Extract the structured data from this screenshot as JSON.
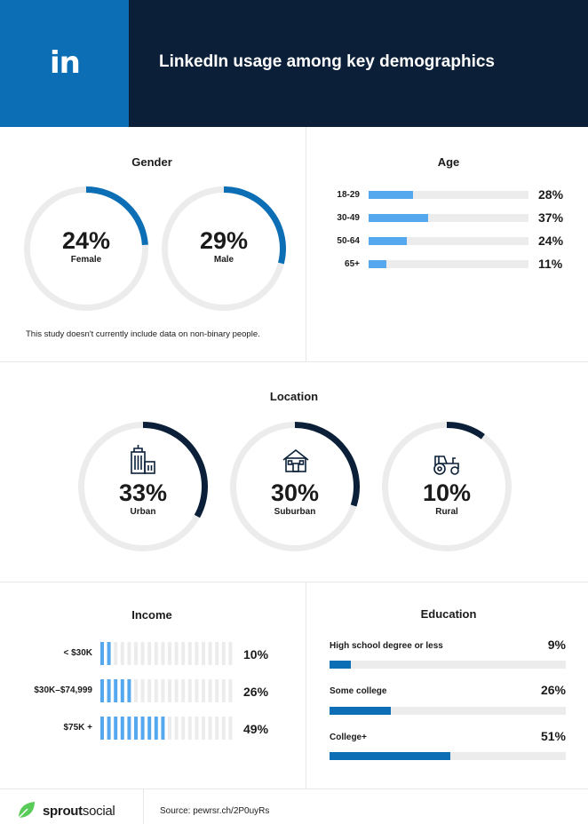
{
  "header": {
    "logo": "in",
    "title": "LinkedIn usage among key demographics"
  },
  "colors": {
    "header_bg": "#0b2038",
    "logo_bg": "#0c6fb5",
    "gender_arc": "#0c6fb5",
    "location_arc": "#0b2038",
    "age_bar": "#55a8ee",
    "income_bar": "#55a8ee",
    "education_bar": "#0c6fb5",
    "track": "#ececec"
  },
  "chart_data": [
    {
      "type": "pie",
      "title": "Gender",
      "categories": [
        "Female",
        "Male"
      ],
      "values": [
        24,
        29
      ],
      "value_labels": [
        "24%",
        "29%"
      ],
      "note": "This study doesn't currently include data on non-binary people."
    },
    {
      "type": "bar",
      "title": "Age",
      "categories": [
        "18-29",
        "30-49",
        "50-64",
        "65+"
      ],
      "values": [
        28,
        37,
        24,
        11
      ],
      "value_labels": [
        "28%",
        "37%",
        "24%",
        "11%"
      ],
      "orientation": "horizontal",
      "xlim": [
        0,
        100
      ]
    },
    {
      "type": "pie",
      "title": "Location",
      "categories": [
        "Urban",
        "Suburban",
        "Rural"
      ],
      "values": [
        33,
        30,
        10
      ],
      "value_labels": [
        "33%",
        "30%",
        "10%"
      ],
      "icons": [
        "city-buildings-icon",
        "house-icon",
        "tractor-icon"
      ]
    },
    {
      "type": "bar",
      "title": "Income",
      "categories": [
        "< $30K",
        "$30K–$74,999",
        "$75K +"
      ],
      "values": [
        10,
        26,
        49
      ],
      "value_labels": [
        "10%",
        "26%",
        "49%"
      ],
      "orientation": "horizontal",
      "xlim": [
        0,
        100
      ]
    },
    {
      "type": "bar",
      "title": "Education",
      "categories": [
        "High school degree or less",
        "Some college",
        "College+"
      ],
      "values": [
        9,
        26,
        51
      ],
      "value_labels": [
        "9%",
        "26%",
        "51%"
      ],
      "orientation": "horizontal",
      "xlim": [
        0,
        100
      ]
    }
  ],
  "footer": {
    "brand_bold": "sprout",
    "brand_light": "social",
    "source": "Source: pewrsr.ch/2P0uyRs"
  }
}
